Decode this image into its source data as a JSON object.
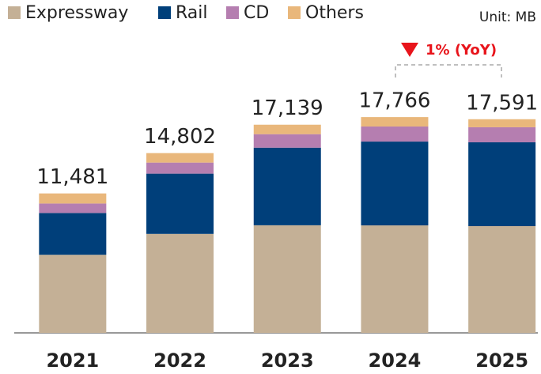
{
  "chart_data": {
    "type": "stacked_bar",
    "unit": "Unit: MB",
    "annotation": "1% (YoY)",
    "categories": [
      "2021",
      "2022",
      "2023",
      "2024",
      "2025"
    ],
    "series": [
      {
        "name": "Expressway",
        "color": "#c4b096",
        "values": [
          6430,
          8150,
          8860,
          8850,
          8790
        ]
      },
      {
        "name": "Rail",
        "color": "#003f7a",
        "values": [
          3440,
          4960,
          6390,
          6900,
          6900
        ]
      },
      {
        "name": "CD",
        "color": "#b57eb0",
        "values": [
          780,
          910,
          1110,
          1240,
          1240
        ]
      },
      {
        "name": "Others",
        "color": "#e9b77b",
        "values": [
          831,
          782,
          779,
          776,
          661
        ]
      }
    ],
    "totals": [
      11481,
      14802,
      17139,
      17766,
      17591
    ],
    "total_labels": [
      "11,481",
      "14,802",
      "17,139",
      "17,766",
      "17,591"
    ],
    "ylim": [
      0,
      18000
    ],
    "legend": "top-left"
  }
}
